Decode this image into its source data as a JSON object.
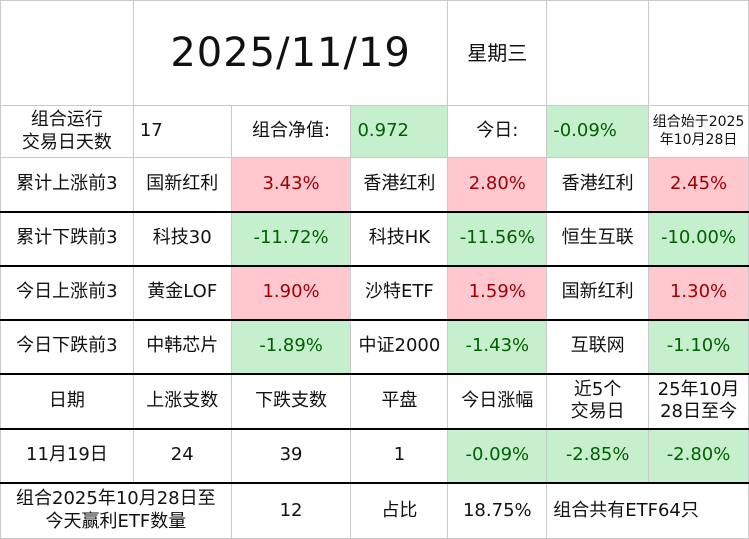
{
  "header": {
    "date": "2025/11/19",
    "weekday": "星期三"
  },
  "summary": {
    "days_label": "组合运行\n交易日天数",
    "days_value": "17",
    "nav_label": "组合净值:",
    "nav_value": "0.972",
    "today_label": "今日:",
    "today_value": "-0.09%",
    "since_label": "组合始于2025\n年10月28日"
  },
  "rankings": [
    {
      "label": "累计上涨前3",
      "items": [
        {
          "name": "国新红利",
          "value": "3.43%"
        },
        {
          "name": "香港红利",
          "value": "2.80%"
        },
        {
          "name": "香港红利",
          "value": "2.45%"
        }
      ]
    },
    {
      "label": "累计下跌前3",
      "items": [
        {
          "name": "科技30",
          "value": "-11.72%"
        },
        {
          "name": "科技HK",
          "value": "-11.56%"
        },
        {
          "name": "恒生互联",
          "value": "-10.00%"
        }
      ]
    },
    {
      "label": "今日上涨前3",
      "items": [
        {
          "name": "黄金LOF",
          "value": "1.90%"
        },
        {
          "name": "沙特ETF",
          "value": "1.59%"
        },
        {
          "name": "国新红利",
          "value": "1.30%"
        }
      ]
    },
    {
      "label": "今日下跌前3",
      "items": [
        {
          "name": "中韩芯片",
          "value": "-1.89%"
        },
        {
          "name": "中证2000",
          "value": "-1.43%"
        },
        {
          "name": "互联网",
          "value": "-1.10%"
        }
      ]
    }
  ],
  "stats": {
    "headers": [
      "日期",
      "上涨支数",
      "下跌支数",
      "平盘",
      "今日涨幅",
      "近5个\n交易日",
      "25年10月\n28日至今"
    ],
    "row": [
      "11月19日",
      "24",
      "39",
      "1",
      "-0.09%",
      "-2.85%",
      "-2.80%"
    ]
  },
  "footer": {
    "label": "组合2025年10月28日至\n今天赢利ETF数量",
    "count": "12",
    "ratio_label": "占比",
    "ratio_value": "18.75%",
    "total": "组合共有ETF64只"
  },
  "colors": {
    "up_bg": "#ffc7ce",
    "up_text": "#9c0006",
    "down_bg": "#c6efce",
    "down_text": "#006100"
  }
}
